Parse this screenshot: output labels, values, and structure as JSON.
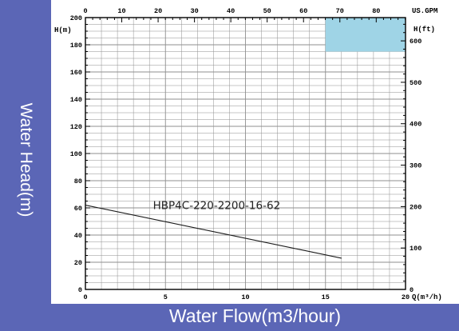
{
  "colors": {
    "background": "#5b66b6",
    "panel": "#ffffff",
    "grid": "#8f8f8f",
    "axis": "#000000",
    "highlight_box": "#9fd4e6",
    "curve": "#1a1a1a"
  },
  "chart_data": {
    "type": "line",
    "title": "",
    "xlabel": "Water Flow(m3/hour)",
    "ylabel": "Water Head(m)",
    "x_unit_label": "Q(m³/h)",
    "y_unit_label": "H(m)",
    "top_unit_label": "US.GPM",
    "right_unit_label": "H(ft)",
    "xlim": [
      0,
      20
    ],
    "ylim": [
      0,
      200
    ],
    "grid": true,
    "x_ticks": [
      0,
      5,
      10,
      15,
      20
    ],
    "x_tick_labels": [
      "0",
      "5",
      "10",
      "15",
      "20"
    ],
    "y_ticks": [
      0,
      20,
      40,
      60,
      80,
      100,
      120,
      140,
      160,
      180,
      200
    ],
    "y_tick_labels": [
      "0",
      "20",
      "40",
      "60",
      "80",
      "100",
      "120",
      "140",
      "160",
      "180",
      "200"
    ],
    "top_ticks": [
      0,
      10,
      20,
      30,
      40,
      50,
      60,
      70,
      80
    ],
    "top_tick_labels": [
      "0",
      "10",
      "20",
      "30",
      "40",
      "50",
      "60",
      "70",
      "80"
    ],
    "right_ticks": [
      0,
      100,
      200,
      300,
      400,
      500,
      600
    ],
    "right_tick_labels": [
      "0",
      "100",
      "200",
      "300",
      "400",
      "500",
      "600"
    ],
    "series": [
      {
        "name": "HBP4C-220-2200-16-62",
        "x": [
          0,
          16
        ],
        "y": [
          62,
          23
        ]
      }
    ],
    "annotations": [
      {
        "text": "HBP4C-220-2200-16-62",
        "x": 8.2,
        "y": 59
      }
    ],
    "highlight_region": {
      "x": [
        15,
        20
      ],
      "y": [
        175,
        200
      ]
    }
  }
}
